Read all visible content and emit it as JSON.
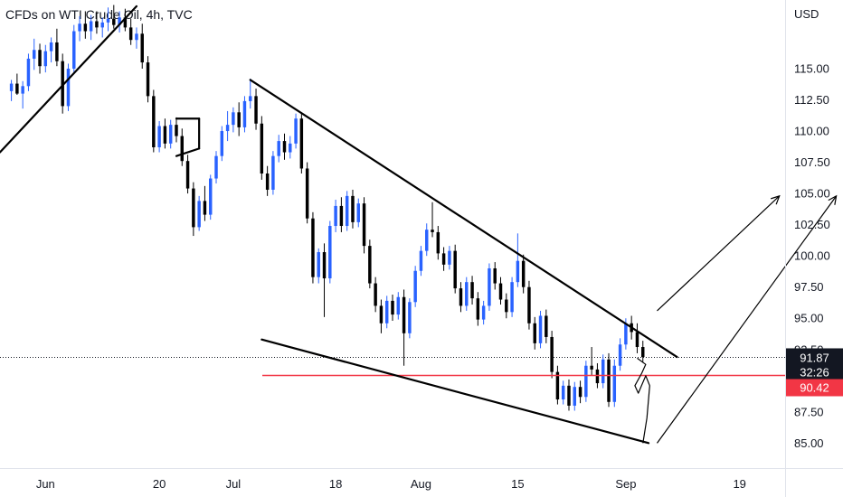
{
  "title": "CFDs on WTI Crude Oil, 4h, TVC",
  "currency": "USD",
  "chart_data": {
    "type": "candlestick",
    "symbol_label": "CFDs on WTI Crude Oil, 4h, TVC",
    "ylim": [
      83.0,
      120.5
    ],
    "xlim": [
      -2,
      136
    ],
    "y_ticks": [
      "115.00",
      "112.50",
      "110.00",
      "107.50",
      "105.00",
      "102.50",
      "100.00",
      "97.50",
      "95.00",
      "92.50",
      "87.50",
      "85.00"
    ],
    "y_tick_values": [
      115,
      112.5,
      110,
      107.5,
      105,
      102.5,
      100,
      97.5,
      95,
      92.5,
      87.5,
      85
    ],
    "x_ticks": [
      {
        "label": "Jun",
        "x": 6
      },
      {
        "label": "20",
        "x": 26
      },
      {
        "label": "Jul",
        "x": 39
      },
      {
        "label": "18",
        "x": 57
      },
      {
        "label": "Aug",
        "x": 72
      },
      {
        "label": "15",
        "x": 89
      },
      {
        "label": "Sep",
        "x": 108
      },
      {
        "label": "19",
        "x": 128
      }
    ],
    "last_price": {
      "value": 91.87,
      "label": "91.87",
      "countdown": "32:26",
      "color": "#131722"
    },
    "support_level": {
      "value": 90.42,
      "label": "90.42",
      "color": "#f23645"
    },
    "candle_colors": {
      "up": "#2962ff",
      "down": "#000000"
    },
    "candles": [
      [
        0,
        113.2,
        114.1,
        112.4,
        113.8
      ],
      [
        1,
        113.8,
        114.6,
        112.9,
        113.0
      ],
      [
        2,
        113.0,
        114.0,
        111.8,
        113.6
      ],
      [
        3,
        113.6,
        116.2,
        113.2,
        115.8
      ],
      [
        4,
        115.8,
        117.4,
        114.9,
        116.5
      ],
      [
        5,
        116.5,
        117.0,
        114.6,
        115.2
      ],
      [
        6,
        115.2,
        116.9,
        114.7,
        116.4
      ],
      [
        7,
        116.4,
        117.5,
        115.5,
        117.1
      ],
      [
        8,
        117.1,
        118.2,
        115.2,
        115.6
      ],
      [
        9,
        115.6,
        116.2,
        111.4,
        112.0
      ],
      [
        10,
        112.0,
        115.4,
        111.6,
        115.0
      ],
      [
        11,
        115.0,
        118.5,
        114.6,
        118.0
      ],
      [
        12,
        118.0,
        119.2,
        117.2,
        118.6
      ],
      [
        13,
        118.6,
        119.6,
        117.4,
        118.0
      ],
      [
        14,
        118.0,
        119.3,
        117.3,
        118.8
      ],
      [
        15,
        118.8,
        119.6,
        117.8,
        118.3
      ],
      [
        16,
        118.3,
        119.1,
        117.5,
        118.7
      ],
      [
        17,
        118.7,
        119.9,
        118.0,
        119.0
      ],
      [
        18,
        119.0,
        120.1,
        118.2,
        118.5
      ],
      [
        19,
        118.5,
        119.6,
        117.9,
        119.1
      ],
      [
        20,
        119.1,
        119.8,
        118.0,
        118.3
      ],
      [
        21,
        118.3,
        119.0,
        116.9,
        117.3
      ],
      [
        22,
        117.3,
        118.3,
        116.6,
        117.8
      ],
      [
        23,
        117.8,
        118.6,
        115.0,
        115.5
      ],
      [
        24,
        115.5,
        116.0,
        112.3,
        112.8
      ],
      [
        25,
        112.8,
        113.3,
        108.3,
        108.7
      ],
      [
        26,
        108.7,
        110.8,
        108.3,
        110.4
      ],
      [
        27,
        110.4,
        111.0,
        108.6,
        109.0
      ],
      [
        28,
        109.0,
        110.9,
        108.6,
        110.5
      ],
      [
        29,
        110.5,
        111.1,
        109.1,
        109.6
      ],
      [
        30,
        109.6,
        110.2,
        107.2,
        107.6
      ],
      [
        31,
        107.6,
        108.1,
        105.0,
        105.4
      ],
      [
        32,
        105.4,
        105.9,
        101.6,
        102.3
      ],
      [
        33,
        102.3,
        104.8,
        102.0,
        104.4
      ],
      [
        34,
        104.4,
        105.6,
        102.8,
        103.3
      ],
      [
        35,
        103.3,
        106.5,
        102.9,
        106.2
      ],
      [
        36,
        106.2,
        108.4,
        105.8,
        108.0
      ],
      [
        37,
        108.0,
        110.4,
        107.6,
        110.0
      ],
      [
        38,
        110.0,
        111.6,
        109.2,
        110.5
      ],
      [
        39,
        110.5,
        111.9,
        109.9,
        111.5
      ],
      [
        40,
        111.5,
        112.3,
        109.6,
        110.3
      ],
      [
        41,
        110.3,
        112.8,
        109.9,
        112.4
      ],
      [
        42,
        112.4,
        114.2,
        111.8,
        112.8
      ],
      [
        43,
        112.8,
        113.4,
        110.1,
        110.6
      ],
      [
        44,
        110.6,
        111.2,
        106.1,
        106.6
      ],
      [
        45,
        106.6,
        107.2,
        104.8,
        105.3
      ],
      [
        46,
        105.3,
        108.4,
        104.9,
        108.0
      ],
      [
        47,
        108.0,
        109.7,
        107.5,
        109.2
      ],
      [
        48,
        109.2,
        109.8,
        107.7,
        108.3
      ],
      [
        49,
        108.3,
        109.6,
        107.8,
        109.0
      ],
      [
        50,
        109.0,
        111.4,
        108.6,
        111.0
      ],
      [
        51,
        111.0,
        111.4,
        106.6,
        107.0
      ],
      [
        52,
        107.0,
        107.5,
        102.6,
        103.0
      ],
      [
        53,
        103.0,
        103.5,
        97.8,
        98.3
      ],
      [
        54,
        98.3,
        100.6,
        97.8,
        100.3
      ],
      [
        55,
        100.3,
        101.0,
        95.1,
        98.2
      ],
      [
        56,
        98.2,
        102.8,
        97.8,
        102.4
      ],
      [
        57,
        102.4,
        104.5,
        101.9,
        104.0
      ],
      [
        58,
        104.0,
        104.7,
        101.9,
        102.4
      ],
      [
        59,
        102.4,
        105.2,
        102.0,
        104.8
      ],
      [
        60,
        104.8,
        105.3,
        102.2,
        102.7
      ],
      [
        61,
        102.7,
        104.6,
        102.3,
        104.2
      ],
      [
        62,
        104.2,
        104.7,
        100.2,
        100.8
      ],
      [
        63,
        100.8,
        101.3,
        97.4,
        97.8
      ],
      [
        64,
        97.8,
        98.3,
        95.5,
        96.0
      ],
      [
        65,
        96.0,
        96.5,
        93.8,
        94.6
      ],
      [
        66,
        94.6,
        96.8,
        94.2,
        96.4
      ],
      [
        67,
        96.4,
        96.9,
        94.8,
        95.3
      ],
      [
        68,
        95.3,
        97.1,
        94.9,
        96.7
      ],
      [
        69,
        96.7,
        97.3,
        91.2,
        93.8
      ],
      [
        70,
        93.8,
        96.6,
        93.4,
        96.3
      ],
      [
        71,
        96.3,
        99.2,
        95.9,
        98.8
      ],
      [
        72,
        98.8,
        100.8,
        98.4,
        100.4
      ],
      [
        73,
        100.4,
        102.6,
        100.0,
        102.1
      ],
      [
        74,
        102.1,
        104.3,
        101.5,
        101.9
      ],
      [
        75,
        101.9,
        102.4,
        99.7,
        100.2
      ],
      [
        76,
        100.2,
        100.7,
        98.8,
        99.3
      ],
      [
        77,
        99.3,
        100.8,
        98.9,
        100.4
      ],
      [
        78,
        100.4,
        100.9,
        97.0,
        97.4
      ],
      [
        79,
        97.4,
        97.9,
        95.5,
        96.0
      ],
      [
        80,
        96.0,
        98.3,
        95.6,
        97.9
      ],
      [
        81,
        97.9,
        98.4,
        96.1,
        96.6
      ],
      [
        82,
        96.6,
        97.1,
        94.4,
        94.9
      ],
      [
        83,
        94.9,
        96.4,
        94.5,
        96.0
      ],
      [
        84,
        96.0,
        99.4,
        95.6,
        99.0
      ],
      [
        85,
        99.0,
        99.5,
        97.3,
        97.8
      ],
      [
        86,
        97.8,
        98.3,
        96.1,
        96.5
      ],
      [
        87,
        96.5,
        97.0,
        95.0,
        95.5
      ],
      [
        88,
        95.5,
        98.3,
        95.1,
        97.9
      ],
      [
        89,
        97.9,
        101.8,
        97.5,
        99.6
      ],
      [
        90,
        99.6,
        100.1,
        97.0,
        97.5
      ],
      [
        91,
        97.5,
        98.0,
        94.1,
        94.6
      ],
      [
        92,
        94.6,
        95.1,
        92.5,
        93.0
      ],
      [
        93,
        93.0,
        95.6,
        92.6,
        95.2
      ],
      [
        94,
        95.2,
        95.7,
        93.0,
        93.5
      ],
      [
        95,
        93.5,
        94.0,
        90.2,
        90.7
      ],
      [
        96,
        90.7,
        91.2,
        88.1,
        88.5
      ],
      [
        97,
        88.5,
        90.0,
        88.1,
        89.6
      ],
      [
        98,
        89.6,
        90.1,
        87.6,
        88.0
      ],
      [
        99,
        88.0,
        89.9,
        87.6,
        89.5
      ],
      [
        100,
        89.5,
        90.0,
        88.2,
        88.7
      ],
      [
        101,
        88.7,
        91.6,
        88.3,
        91.2
      ],
      [
        102,
        91.2,
        92.7,
        90.4,
        90.9
      ],
      [
        103,
        90.9,
        91.4,
        89.4,
        89.8
      ],
      [
        104,
        89.8,
        92.1,
        89.4,
        91.7
      ],
      [
        105,
        91.7,
        92.2,
        87.9,
        88.3
      ],
      [
        106,
        88.3,
        91.7,
        87.9,
        91.2
      ],
      [
        107,
        91.2,
        93.4,
        90.8,
        92.9
      ],
      [
        108,
        92.9,
        95.0,
        92.5,
        94.6
      ],
      [
        109,
        94.6,
        95.2,
        93.3,
        93.9
      ],
      [
        110,
        93.9,
        94.6,
        92.2,
        92.7
      ],
      [
        111,
        92.7,
        93.2,
        91.5,
        91.9
      ]
    ]
  },
  "drawings": {
    "trend_lines": [
      {
        "name": "rising-support-line",
        "x1": -2,
        "y1": 108.3,
        "x2": 22,
        "y2": 120.0
      },
      {
        "name": "descending-resistance-line",
        "x1": 42,
        "y1": 114.1,
        "x2": 117,
        "y2": 91.9
      },
      {
        "name": "descending-support-line",
        "x1": 44,
        "y1": 93.3,
        "x2": 112,
        "y2": 85.0
      },
      {
        "name": "consolidation-box-top",
        "x1": 29,
        "y1": 111.0,
        "x2": 33,
        "y2": 111.0
      },
      {
        "name": "consolidation-box-bottom",
        "x1": 29,
        "y1": 108.0,
        "x2": 33,
        "y2": 108.6
      },
      {
        "name": "consolidation-box-right",
        "x1": 33,
        "y1": 111.0,
        "x2": 33,
        "y2": 108.6
      }
    ],
    "arrows": [
      {
        "name": "projection-arrow-1",
        "x1": 113.5,
        "y1": 95.6,
        "x2": 135,
        "y2": 104.8
      },
      {
        "name": "projection-arrow-2",
        "x1": 113.5,
        "y1": 85.0,
        "x2": 145,
        "y2": 104.8
      }
    ],
    "squiggle": [
      [
        110,
        91.8
      ],
      [
        111.5,
        91.3
      ],
      [
        110.8,
        90.6
      ],
      [
        109.6,
        89.6
      ],
      [
        110.2,
        89.0
      ],
      [
        111.5,
        90.4
      ],
      [
        112.2,
        89.6
      ],
      [
        111.7,
        87.0
      ],
      [
        111.0,
        85.0
      ]
    ]
  }
}
